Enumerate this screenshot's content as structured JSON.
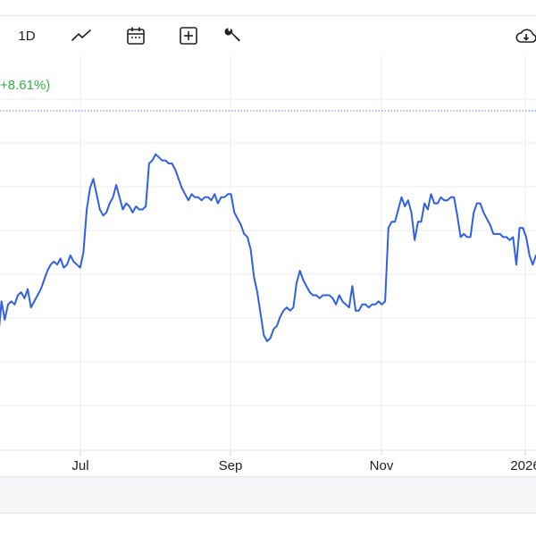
{
  "toolbar": {
    "range_label": "1D",
    "icons": [
      "line-chart-icon",
      "calendar-icon",
      "add-box-icon",
      "wrench-icon",
      "cloud-download-icon"
    ]
  },
  "change_label": "+8.61%)",
  "colors": {
    "line": "#2f5fe3",
    "reference_line": "#5c7fe6",
    "grid": "#eceef1",
    "positive": "#2fb344"
  },
  "chart_data": {
    "type": "line",
    "title": "",
    "xlabel": "",
    "ylabel": "",
    "x_ticks": [
      "Jul",
      "Sep",
      "Nov",
      "2026"
    ],
    "reference_line": true,
    "grid": true,
    "series": [
      {
        "values": [
          40.2,
          41.4,
          40.8,
          41.3,
          41.4,
          41.3,
          41.6,
          41.7,
          41.5,
          41.8,
          41.2,
          41.4,
          41.6,
          41.8,
          42.1,
          42.4,
          42.6,
          42.7,
          42.6,
          42.8,
          42.5,
          42.6,
          42.9,
          42.7,
          42.6,
          42.5,
          43.0,
          44.4,
          45.1,
          45.4,
          44.9,
          44.4,
          44.2,
          44.3,
          44.6,
          44.8,
          45.2,
          44.8,
          44.4,
          44.6,
          44.5,
          44.3,
          44.5,
          44.4,
          44.4,
          44.5,
          45.9,
          46.0,
          46.2,
          46.1,
          46.0,
          46.0,
          45.9,
          45.9,
          45.7,
          45.4,
          45.1,
          44.9,
          44.7,
          44.9,
          44.8,
          44.8,
          44.7,
          44.8,
          44.8,
          44.7,
          44.9,
          44.6,
          44.8,
          44.8,
          44.9,
          44.9,
          44.3,
          44.1,
          43.9,
          43.6,
          43.5,
          43.1,
          42.2,
          41.7,
          41.0,
          40.3,
          40.1,
          40.2,
          40.5,
          40.6,
          40.9,
          41.1,
          41.2,
          41.1,
          41.2,
          42.0,
          42.4,
          42.1,
          41.9,
          41.7,
          41.6,
          41.6,
          41.5,
          41.6,
          41.6,
          41.6,
          41.5,
          41.3,
          41.6,
          41.4,
          41.3,
          41.2,
          41.9,
          41.1,
          41.1,
          41.3,
          41.3,
          41.2,
          41.3,
          41.3,
          41.4,
          41.3,
          41.4,
          43.8,
          44.0,
          44.0,
          44.4,
          44.8,
          44.5,
          44.7,
          44.3,
          43.4,
          44.0,
          44.0,
          44.6,
          44.4,
          44.9,
          44.6,
          44.6,
          44.8,
          44.7,
          44.7,
          44.8,
          44.8,
          44.2,
          43.5,
          43.6,
          43.5,
          43.5,
          44.3,
          44.6,
          44.6,
          44.3,
          44.1,
          43.9,
          43.6,
          43.6,
          43.6,
          43.5,
          43.5,
          43.4,
          43.5,
          42.6,
          43.8,
          43.8,
          43.5,
          42.9,
          42.6,
          42.9
        ]
      }
    ]
  }
}
